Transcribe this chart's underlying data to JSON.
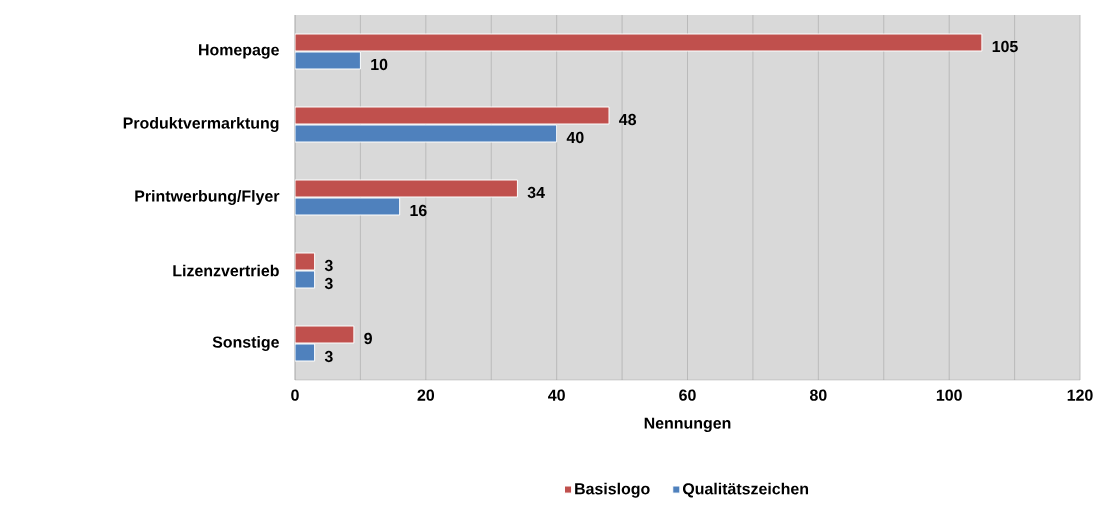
{
  "chart_data": {
    "type": "bar",
    "orientation": "horizontal",
    "categories": [
      "Homepage",
      "Produktvermarktung",
      "Printwerbung/Flyer",
      "Lizenzvertrieb",
      "Sonstige"
    ],
    "series": [
      {
        "name": "Basislogo",
        "color": "#c0504d",
        "values": [
          105,
          48,
          34,
          3,
          9
        ]
      },
      {
        "name": "Qualitätszeichen",
        "color": "#4f81bd",
        "values": [
          10,
          40,
          16,
          3,
          3
        ]
      }
    ],
    "xlabel": "Nennungen",
    "xlim": [
      0,
      120
    ],
    "xticks": [
      0,
      {
        "value": 10,
        "label": null
      },
      20,
      {
        "value": 30,
        "label": null
      },
      40,
      {
        "value": 50,
        "label": null
      },
      60,
      {
        "value": 70,
        "label": null
      },
      80,
      {
        "value": 90,
        "label": null
      },
      100,
      {
        "value": 110,
        "label": null
      },
      120
    ],
    "grid": "x",
    "legend": "bottom",
    "data_labels": true
  }
}
